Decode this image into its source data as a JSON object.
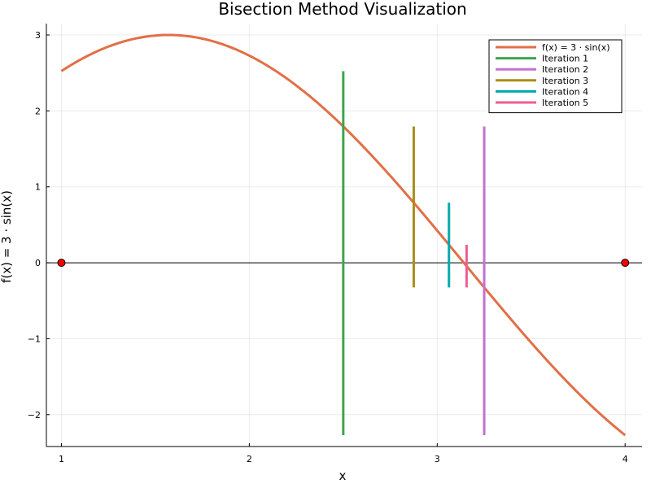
{
  "chart_data": {
    "type": "line",
    "title": "Bisection Method Visualization",
    "xlabel": "x",
    "ylabel": "f(x) = 3 · sin(x)",
    "xlim": [
      0.92,
      4.09
    ],
    "ylim": [
      -2.42,
      3.15
    ],
    "xticks": [
      1,
      2,
      3,
      4
    ],
    "yticks": [
      -2,
      -1,
      0,
      1,
      2,
      3
    ],
    "grid": true,
    "legend_position": "top-right",
    "function": {
      "name": "f(x) = 3 · sin(x)",
      "color": "#e26f46",
      "x_range": [
        1,
        4
      ],
      "x": [
        1.0,
        1.25,
        1.5,
        1.5708,
        1.75,
        2.0,
        2.25,
        2.5,
        2.75,
        3.0,
        3.1416,
        3.25,
        3.5,
        3.75,
        4.0
      ],
      "y": [
        2.524,
        2.847,
        2.992,
        3.0,
        2.952,
        2.728,
        2.334,
        1.795,
        1.146,
        0.423,
        0.0,
        -0.325,
        -1.052,
        -1.716,
        -2.27
      ]
    },
    "series": [
      {
        "name": "Iteration 1",
        "color": "#3da44d",
        "x": 2.5,
        "y_range": [
          -2.27,
          2.524
        ]
      },
      {
        "name": "Iteration 2",
        "color": "#c371d2",
        "x": 3.25,
        "y_range": [
          -2.27,
          1.795
        ]
      },
      {
        "name": "Iteration 3",
        "color": "#ac8d18",
        "x": 2.875,
        "y_range": [
          -0.325,
          1.795
        ]
      },
      {
        "name": "Iteration 4",
        "color": "#00a9ad",
        "x": 3.0625,
        "y_range": [
          -0.325,
          0.791
        ]
      },
      {
        "name": "Iteration 5",
        "color": "#ed5d92",
        "x": 3.15625,
        "y_range": [
          -0.325,
          0.237
        ]
      }
    ],
    "zero_line": {
      "y": 0,
      "color": "#000000"
    },
    "endpoints": [
      {
        "x": 1,
        "y": 0,
        "color": "#ff0000"
      },
      {
        "x": 4,
        "y": 0,
        "color": "#ff0000"
      }
    ]
  }
}
